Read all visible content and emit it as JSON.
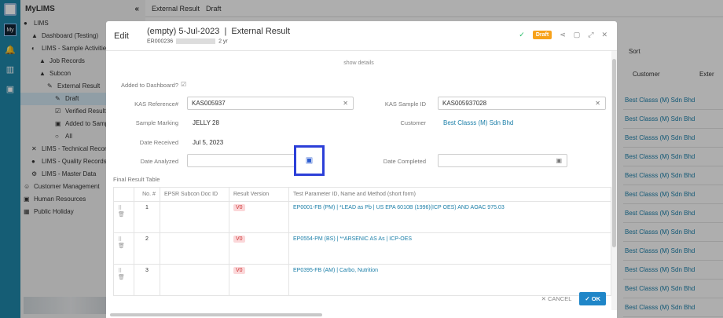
{
  "app": {
    "name": "MyLIMS",
    "collapse": "«",
    "my_label": "My"
  },
  "sidebar": {
    "items": [
      {
        "label": "LIMS",
        "icon": "globe-icon",
        "indent": 0
      },
      {
        "label": "Dashboard (Testing)",
        "icon": "dashboard-icon",
        "indent": 1
      },
      {
        "label": "LIMS - Sample Activities",
        "icon": "magnet-icon",
        "indent": 1
      },
      {
        "label": "Job Records",
        "icon": "job-icon",
        "indent": 2
      },
      {
        "label": "Subcon",
        "icon": "subcon-icon",
        "indent": 2
      },
      {
        "label": "External Result",
        "icon": "pencil-icon",
        "indent": 3
      },
      {
        "label": "Draft",
        "icon": "draft-icon",
        "indent": 4,
        "active": true
      },
      {
        "label": "Verified Results",
        "icon": "check-icon",
        "indent": 4
      },
      {
        "label": "Added to Sample",
        "icon": "arrow-icon",
        "indent": 4
      },
      {
        "label": "All",
        "icon": "circle-icon",
        "indent": 4
      },
      {
        "label": "LIMS - Technical Records F",
        "icon": "tools-icon",
        "indent": 1
      },
      {
        "label": "LIMS - Quality Records For",
        "icon": "quality-icon",
        "indent": 1
      },
      {
        "label": "LIMS - Master Data",
        "icon": "gear-icon",
        "indent": 1
      },
      {
        "label": "Customer Management",
        "icon": "smiley-icon",
        "indent": 0
      },
      {
        "label": "Human Resources",
        "icon": "hr-icon",
        "indent": 0
      },
      {
        "label": "Public Holiday",
        "icon": "calendar-icon",
        "indent": 0
      }
    ]
  },
  "topbar": {
    "crumb1": "External Result",
    "crumb2": "Draft",
    "sort": "Sort",
    "col_customer": "Customer",
    "col_ext": "Exter"
  },
  "list": [
    "Best Classs (M) Sdn Bhd",
    "Best Classs (M) Sdn Bhd",
    "Best Classs (M) Sdn Bhd",
    "Best Classs (M) Sdn Bhd",
    "Best Classs (M) Sdn Bhd",
    "Best Classs (M) Sdn Bhd",
    "Best Classs (M) Sdn Bhd",
    "Best Classs (M) Sdn Bhd",
    "Best Classs (M) Sdn Bhd",
    "Best Classs (M) Sdn Bhd",
    "Best Classs (M) Sdn Bhd",
    "Best Classs (M) Sdn Bhd"
  ],
  "modal": {
    "edit": "Edit",
    "title": "(empty) 5-Jul-2023",
    "type": "External Result",
    "record_id": "ER000236",
    "age": "2 yr",
    "status": "Draft",
    "show_details": "show details",
    "added_to_dashboard": "Added to Dashboard?",
    "kas_ref_label": "KAS Reference#",
    "kas_ref": "KAS005937",
    "kas_sample_label": "KAS Sample ID",
    "kas_sample": "KAS005937028",
    "marking_label": "Sample Marking",
    "marking": "JELLY 28",
    "customer_label": "Customer",
    "customer": "Best Classs (M) Sdn Bhd",
    "received_label": "Date Received",
    "received": "Jul 5, 2023",
    "analyzed_label": "Date Analyzed",
    "analyzed": "",
    "completed_label": "Date Completed",
    "completed": "",
    "table_label": "Final Result Table",
    "columns": [
      "No. #",
      "EPSR Subcon Doc ID",
      "Result Version",
      "Test Parameter ID, Name and Method (short form)"
    ],
    "rows": [
      {
        "no": "1",
        "doc": "",
        "ver": "V0",
        "param": "EP0001-FB (PM) | *LEAD as Pb | US EPA 6010B (1996)(ICP OES) AND AOAC 975.03"
      },
      {
        "no": "2",
        "doc": "",
        "ver": "V0",
        "param": "EP0554-PM (BS) | **ARSENIC AS As | ICP-OES"
      },
      {
        "no": "3",
        "doc": "",
        "ver": "V0",
        "param": "EP0395-FB (AM) | Carbo, Nutrition"
      }
    ],
    "cancel": "CANCEL",
    "ok": "OK"
  },
  "colors": {
    "accent": "#1f86a8",
    "draft": "#f7a21b",
    "highlight": "#2c3fd8"
  }
}
